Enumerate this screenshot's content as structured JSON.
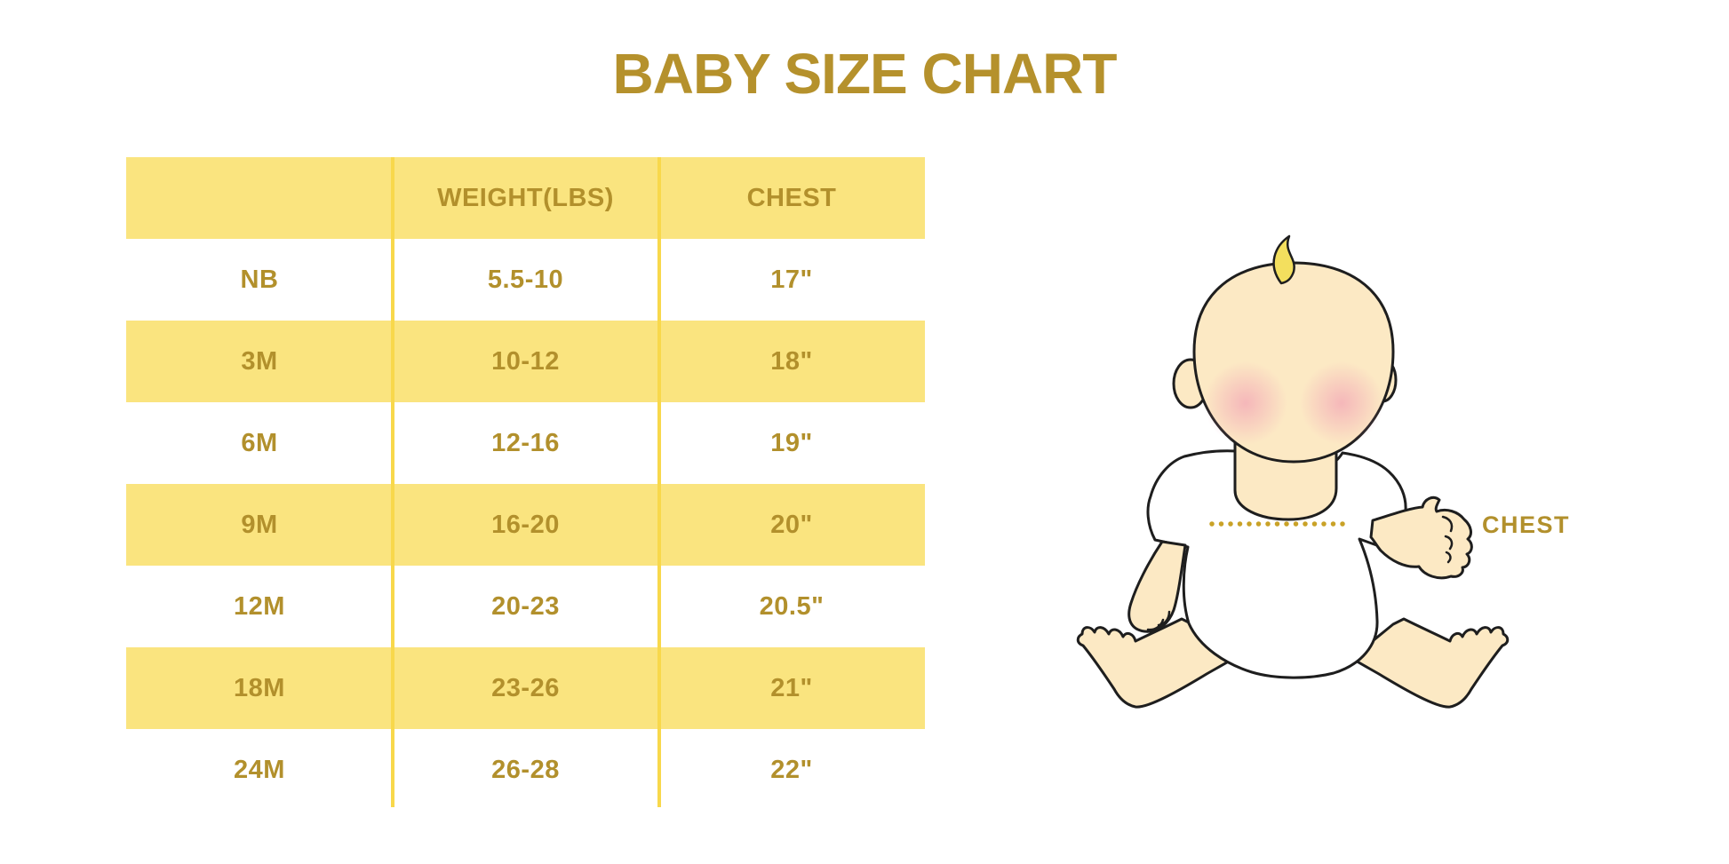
{
  "page": {
    "title": "BABY SIZE CHART"
  },
  "table": {
    "columns": [
      {
        "label": ""
      },
      {
        "label": "WEIGHT(LBS)"
      },
      {
        "label": "CHEST"
      }
    ],
    "rows": [
      {
        "size": "NB",
        "weight": "5.5-10",
        "chest": "17\""
      },
      {
        "size": "3M",
        "weight": "10-12",
        "chest": "18\""
      },
      {
        "size": "6M",
        "weight": "12-16",
        "chest": "19\""
      },
      {
        "size": "9M",
        "weight": "16-20",
        "chest": "20\""
      },
      {
        "size": "12M",
        "weight": "20-23",
        "chest": "20.5\""
      },
      {
        "size": "18M",
        "weight": "23-26",
        "chest": "21\""
      },
      {
        "size": "24M",
        "weight": "26-28",
        "chest": "22\""
      }
    ]
  },
  "figure": {
    "illustration": "sitting-baby-with-chest-measurement",
    "chest_label": "CHEST"
  },
  "colors": {
    "gold_text": "#b2902c",
    "title_gold": "#b5912c",
    "row_yellow": "#fae47f",
    "divider_yellow": "#f8d84b",
    "dotted_line_gold": "#c9a227",
    "baby_skin": "#fce9c4",
    "baby_hair_yellow": "#f3df5e",
    "cheek_pink": "#f19cb4",
    "outline": "#1e1e1e",
    "background": "#ffffff"
  },
  "chart_data": {
    "type": "table",
    "title": "BABY SIZE CHART",
    "columns": [
      "",
      "WEIGHT(LBS)",
      "CHEST"
    ],
    "rows": [
      [
        "NB",
        "5.5-10",
        "17\""
      ],
      [
        "3M",
        "10-12",
        "18\""
      ],
      [
        "6M",
        "12-16",
        "19\""
      ],
      [
        "9M",
        "16-20",
        "20\""
      ],
      [
        "12M",
        "20-23",
        "20.5\""
      ],
      [
        "18M",
        "23-26",
        "21\""
      ],
      [
        "24M",
        "26-28",
        "22\""
      ]
    ],
    "notes": "Baby garment size chart; sizes NB-24M with weight range in lbs and chest circumference in inches; illustration marks chest measurement line."
  }
}
